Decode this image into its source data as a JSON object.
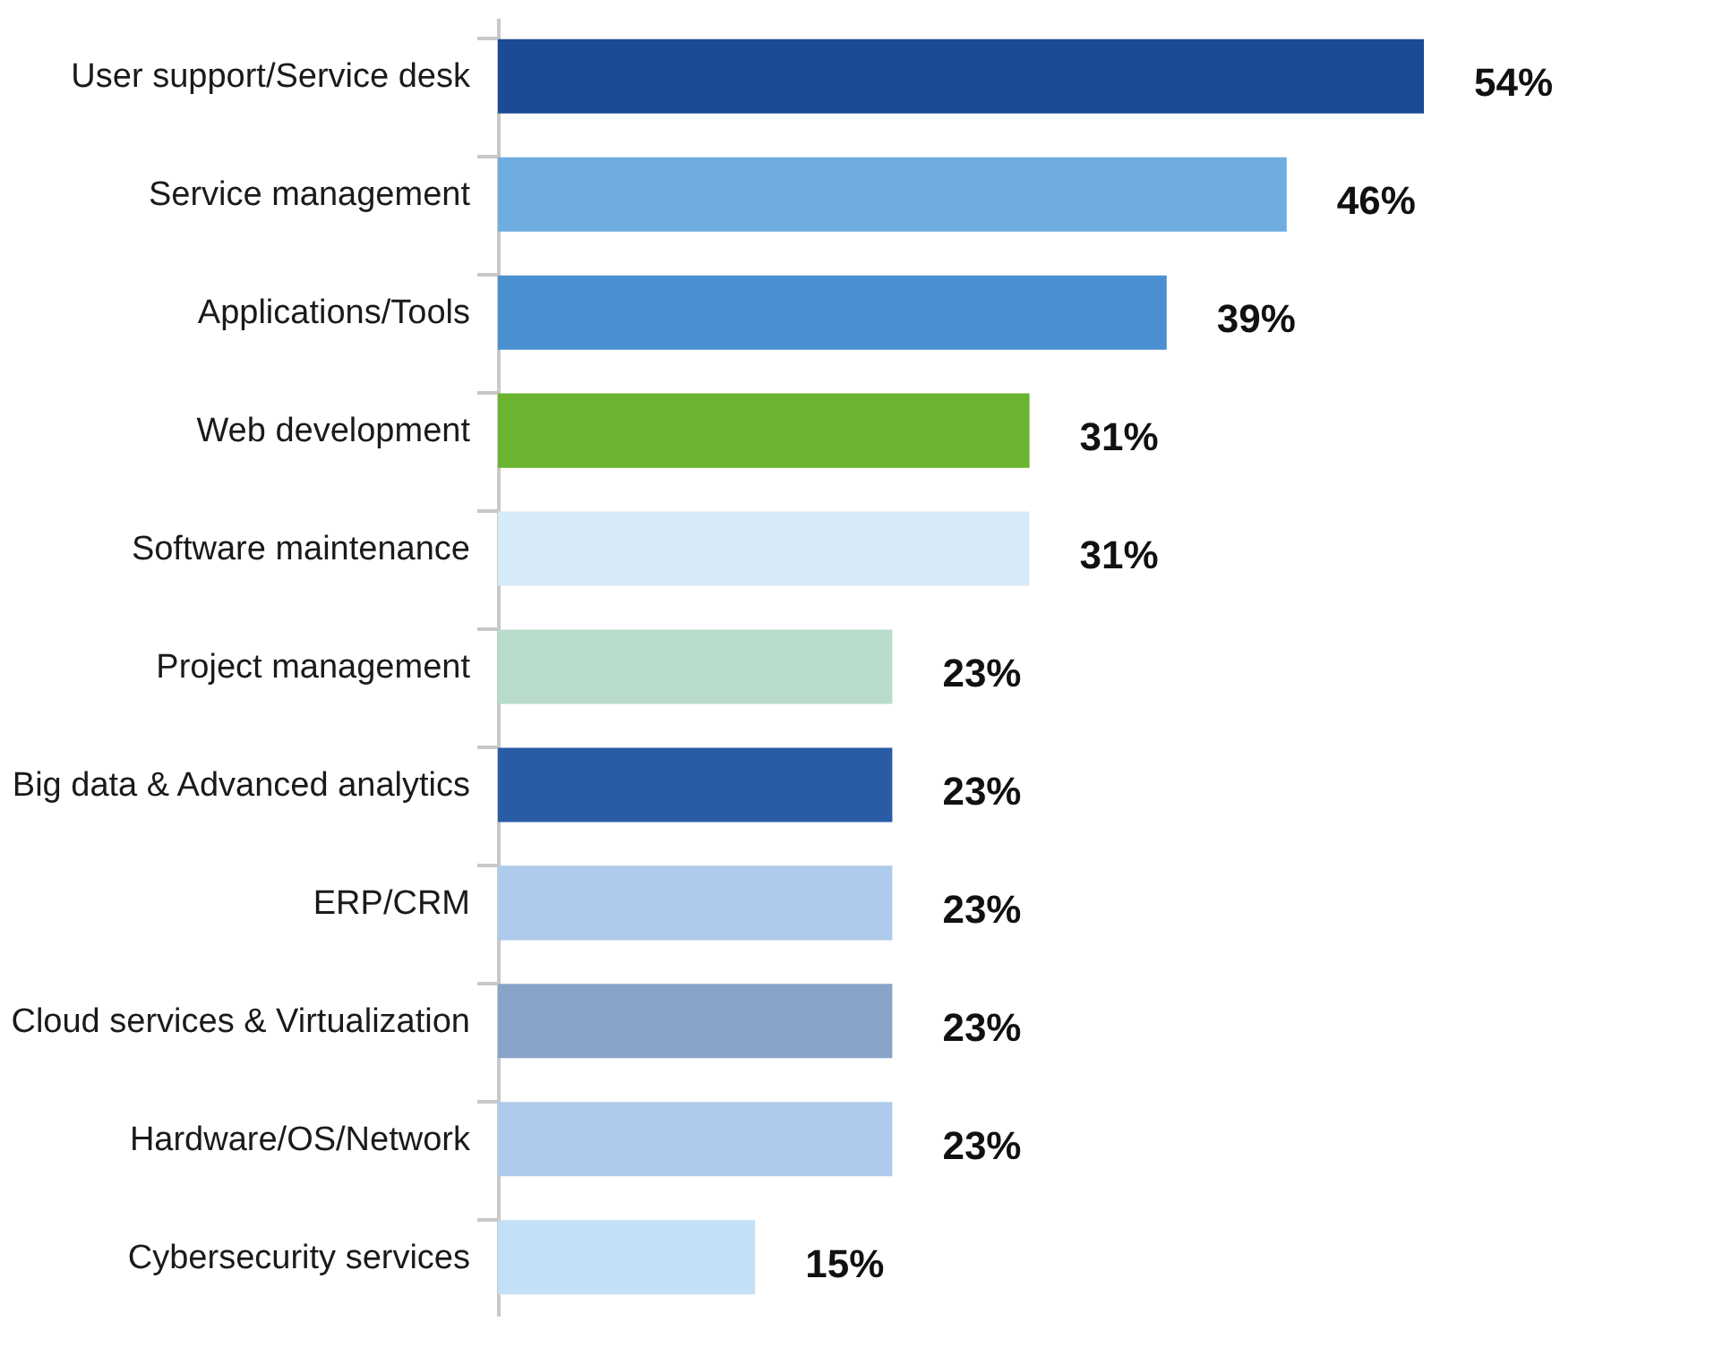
{
  "chart_data": {
    "type": "bar",
    "orientation": "horizontal",
    "categories": [
      "User support/Service desk",
      "Service management",
      "Applications/Tools",
      "Web development",
      "Software maintenance",
      "Project management",
      "Big data & Advanced analytics",
      "ERP/CRM",
      "Cloud services & Virtualization",
      "Hardware/OS/Network",
      "Cybersecurity services"
    ],
    "values": [
      54,
      46,
      39,
      31,
      31,
      23,
      23,
      23,
      23,
      23,
      15
    ],
    "value_labels": [
      "54%",
      "46%",
      "39%",
      "31%",
      "31%",
      "23%",
      "23%",
      "23%",
      "23%",
      "23%",
      "15%"
    ],
    "colors": [
      "#1c4a94",
      "#6fade0",
      "#4a90d0",
      "#6ab42f",
      "#d6eaf8",
      "#b8dcc9",
      "#2a5ca6",
      "#aecbeb",
      "#87a3c8",
      "#aecbeb",
      "#c4e0f6"
    ]
  }
}
